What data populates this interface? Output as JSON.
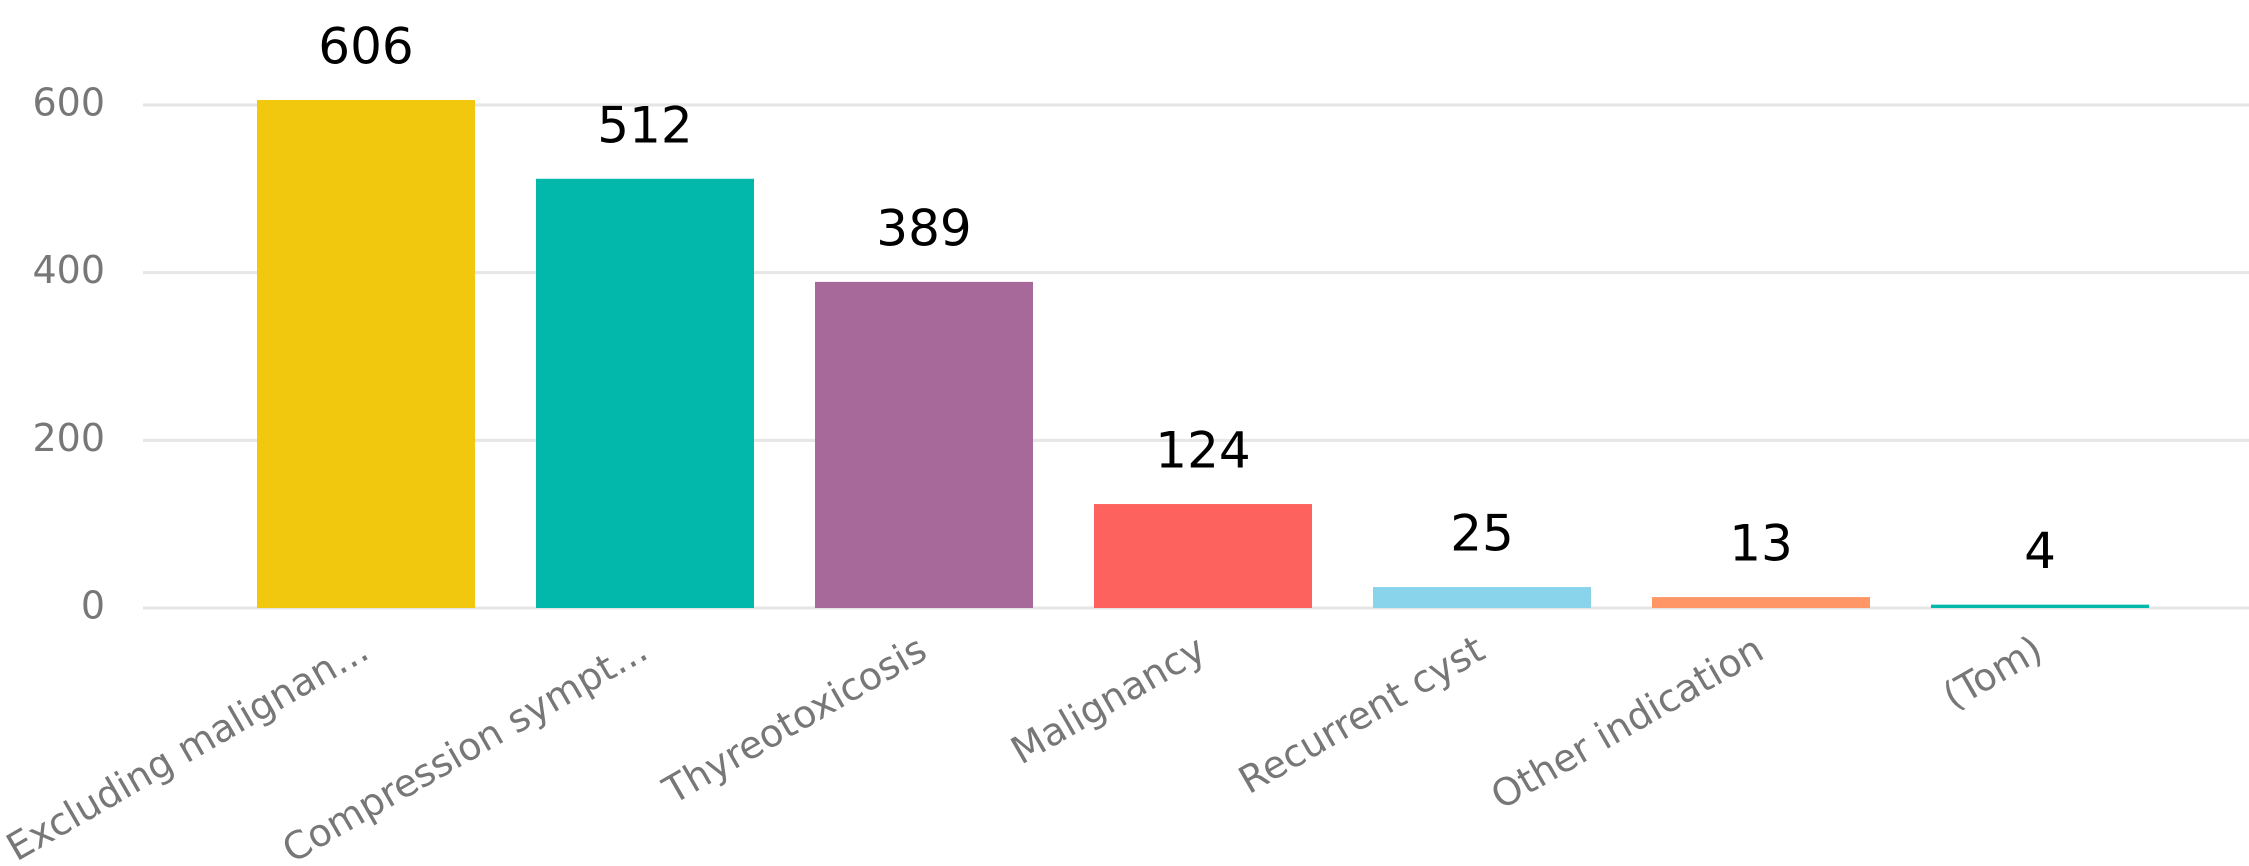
{
  "chart_data": {
    "type": "bar",
    "categories": [
      "Excluding malignan...",
      "Compression sympt...",
      "Thyreotoxicosis",
      "Malignancy",
      "Recurrent cyst",
      "Other indication",
      "(Tom)"
    ],
    "values": [
      606,
      512,
      389,
      124,
      25,
      13,
      4
    ],
    "colors": [
      "#F2C80F",
      "#01B8AA",
      "#A66999",
      "#FD625E",
      "#8AD4EB",
      "#FE9666",
      "#01B8AA"
    ],
    "ylim": [
      0,
      600
    ],
    "yticks": [
      0,
      200,
      400,
      600
    ],
    "grid": true
  }
}
